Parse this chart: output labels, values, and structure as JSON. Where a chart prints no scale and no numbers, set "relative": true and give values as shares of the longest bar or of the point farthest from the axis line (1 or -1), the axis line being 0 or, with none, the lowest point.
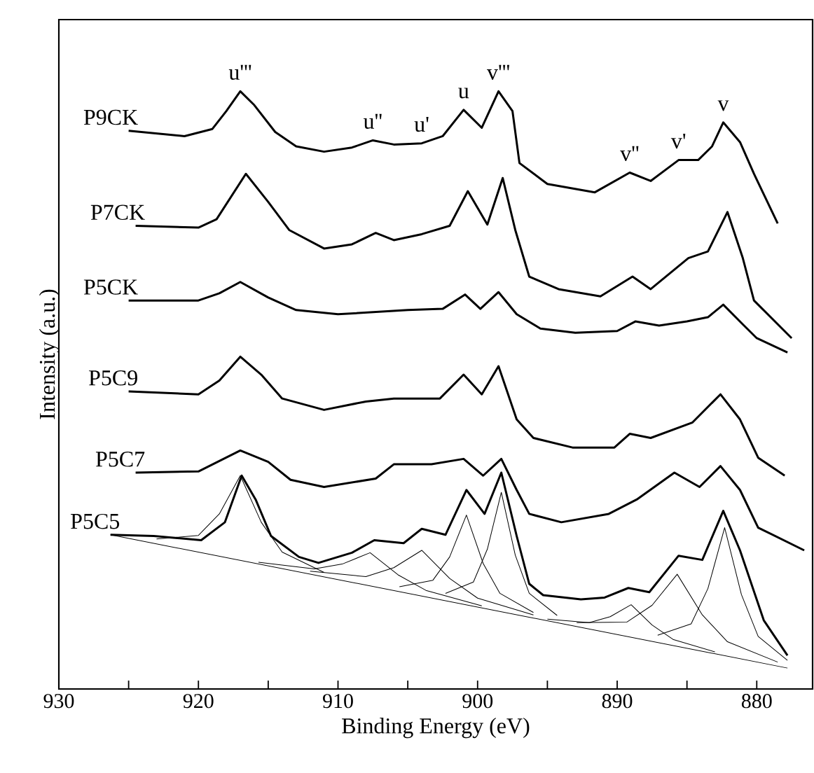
{
  "chart_data": {
    "type": "line",
    "relative": true,
    "xlabel": "Binding Energy (eV)",
    "ylabel": "Intensity (a.u.)",
    "xlim": [
      930,
      876
    ],
    "xticks": [
      930,
      {
        "value": 925,
        "label": null
      },
      920,
      {
        "value": 915,
        "label": null
      },
      910,
      {
        "value": 905,
        "label": null
      },
      900,
      {
        "value": 895,
        "label": null
      },
      890,
      {
        "value": 885,
        "label": null
      },
      880
    ],
    "annotations": [
      {
        "text": "u'''",
        "x": 917,
        "y": 1.0
      },
      {
        "text": "u''",
        "x": 907.5,
        "y": 0.918
      },
      {
        "text": "u'",
        "x": 904,
        "y": 0.913
      },
      {
        "text": "u",
        "x": 901,
        "y": 0.969
      },
      {
        "text": "v'''",
        "x": 898.5,
        "y": 1.0
      },
      {
        "text": "v''",
        "x": 889.1,
        "y": 0.864
      },
      {
        "text": "v'",
        "x": 885.6,
        "y": 0.885
      },
      {
        "text": "v",
        "x": 882.4,
        "y": 0.948
      }
    ],
    "series": [
      {
        "name": "P9CK",
        "color": "#000000",
        "x": [
          925,
          921,
          919,
          918,
          917,
          916,
          914.5,
          913,
          911,
          909,
          907.5,
          906,
          904,
          902.5,
          901,
          899.7,
          898.5,
          897.5,
          897,
          895,
          891.6,
          889.1,
          887.6,
          885.6,
          884.2,
          883.2,
          882.4,
          881.2,
          880.2,
          878.5
        ],
        "values": [
          0.934,
          0.925,
          0.937,
          0.967,
          1.0,
          0.977,
          0.932,
          0.908,
          0.899,
          0.906,
          0.918,
          0.911,
          0.913,
          0.925,
          0.969,
          0.939,
          1.0,
          0.967,
          0.88,
          0.845,
          0.831,
          0.864,
          0.85,
          0.885,
          0.885,
          0.908,
          0.948,
          0.915,
          0.862,
          0.779
        ]
      },
      {
        "name": "P7CK",
        "color": "#000000",
        "x": [
          924.5,
          920,
          918.7,
          916.6,
          915,
          913.5,
          911,
          909,
          907.3,
          906,
          904,
          902,
          900.7,
          899.3,
          898.2,
          897.3,
          896.3,
          894.2,
          891.2,
          888.9,
          887.6,
          884.9,
          883.5,
          882.1,
          881,
          880.2,
          877.5
        ],
        "values": [
          0.775,
          0.772,
          0.786,
          0.862,
          0.815,
          0.768,
          0.737,
          0.744,
          0.763,
          0.751,
          0.761,
          0.775,
          0.833,
          0.777,
          0.855,
          0.768,
          0.69,
          0.669,
          0.657,
          0.69,
          0.669,
          0.721,
          0.732,
          0.798,
          0.721,
          0.65,
          0.587
        ]
      },
      {
        "name": "P5CK",
        "color": "#000000",
        "x": [
          925,
          920,
          918.5,
          917,
          915,
          913,
          910,
          905,
          902.5,
          900.9,
          899.8,
          898.5,
          897.2,
          895.5,
          893,
          890,
          888.7,
          887,
          885,
          883.5,
          882.4,
          881,
          880,
          877.8
        ],
        "values": [
          0.65,
          0.65,
          0.662,
          0.681,
          0.655,
          0.634,
          0.627,
          0.634,
          0.636,
          0.66,
          0.636,
          0.664,
          0.627,
          0.603,
          0.596,
          0.599,
          0.615,
          0.608,
          0.615,
          0.622,
          0.643,
          0.61,
          0.587,
          0.563
        ]
      },
      {
        "name": "P5C9",
        "color": "#000000",
        "x": [
          925,
          920,
          918.5,
          917,
          915.5,
          914,
          911,
          908,
          906,
          902.7,
          901,
          899.7,
          898.5,
          897.2,
          896,
          893.2,
          890.2,
          889.1,
          887.6,
          884.6,
          882.6,
          881.2,
          879.9,
          878
        ],
        "values": [
          0.498,
          0.493,
          0.516,
          0.556,
          0.526,
          0.486,
          0.467,
          0.481,
          0.486,
          0.486,
          0.526,
          0.493,
          0.54,
          0.451,
          0.42,
          0.404,
          0.404,
          0.427,
          0.42,
          0.446,
          0.493,
          0.451,
          0.387,
          0.357
        ]
      },
      {
        "name": "P5C7",
        "color": "#000000",
        "x": [
          924.5,
          920,
          917,
          915,
          913.4,
          911,
          907.3,
          906,
          903.3,
          901,
          899.6,
          898.3,
          897.2,
          896.3,
          894,
          890.6,
          888.6,
          885.9,
          884.1,
          882.6,
          881.2,
          879.9,
          876.6
        ],
        "values": [
          0.362,
          0.364,
          0.399,
          0.38,
          0.35,
          0.338,
          0.352,
          0.376,
          0.376,
          0.385,
          0.357,
          0.385,
          0.333,
          0.293,
          0.279,
          0.293,
          0.317,
          0.362,
          0.338,
          0.373,
          0.333,
          0.27,
          0.232
        ]
      },
      {
        "name": "P5C5",
        "color": "#000000",
        "x": [
          926.3,
          923.2,
          919.8,
          918.1,
          916.9,
          915.9,
          914.8,
          912.8,
          911.4,
          909,
          907.4,
          905.3,
          904,
          902.3,
          900.8,
          899.5,
          898.3,
          897.2,
          896.3,
          895.3,
          892.6,
          890.9,
          889.2,
          887.7,
          885.6,
          883.9,
          882.4,
          881.2,
          879.5,
          877.8
        ],
        "values": [
          0.258,
          0.256,
          0.249,
          0.279,
          0.357,
          0.317,
          0.256,
          0.221,
          0.211,
          0.228,
          0.249,
          0.244,
          0.268,
          0.258,
          0.333,
          0.293,
          0.362,
          0.256,
          0.176,
          0.157,
          0.15,
          0.153,
          0.169,
          0.162,
          0.223,
          0.216,
          0.298,
          0.232,
          0.115,
          0.056
        ]
      },
      {
        "color": "#000000",
        "x": [
          926.3,
          877.8
        ],
        "values": [
          0.258,
          0.035
        ]
      },
      {
        "color": "#000000",
        "x": [
          923,
          920,
          918.5,
          917,
          915.5,
          914,
          911
        ],
        "values": [
          0.251,
          0.257,
          0.293,
          0.357,
          0.279,
          0.229,
          0.195
        ]
      },
      {
        "color": "#000000",
        "x": [
          915.7,
          911.7,
          909.7,
          907.7,
          905.7,
          903.7,
          899.7
        ],
        "values": [
          0.212,
          0.201,
          0.209,
          0.228,
          0.191,
          0.165,
          0.139
        ]
      },
      {
        "color": "#000000",
        "x": [
          912,
          908,
          906,
          904,
          902,
          900,
          896
        ],
        "values": [
          0.197,
          0.188,
          0.203,
          0.232,
          0.185,
          0.152,
          0.124
        ]
      },
      {
        "color": "#000000",
        "x": [
          905.6,
          903.2,
          902,
          900.8,
          899.6,
          898.4,
          896
        ],
        "values": [
          0.171,
          0.182,
          0.221,
          0.291,
          0.21,
          0.16,
          0.128
        ]
      },
      {
        "color": "#000000",
        "x": [
          902.3,
          900.3,
          899.3,
          898.3,
          897.3,
          896.3,
          894.3
        ],
        "values": [
          0.16,
          0.179,
          0.234,
          0.329,
          0.224,
          0.16,
          0.123
        ]
      },
      {
        "color": "#000000",
        "x": [
          895,
          892,
          890.5,
          889,
          887.5,
          886,
          883
        ],
        "values": [
          0.117,
          0.111,
          0.121,
          0.141,
          0.107,
          0.083,
          0.062
        ]
      },
      {
        "color": "#000000",
        "x": [
          892.9,
          889.3,
          887.5,
          885.7,
          883.9,
          882.1,
          878.5
        ],
        "values": [
          0.111,
          0.112,
          0.14,
          0.192,
          0.124,
          0.079,
          0.045
        ]
      },
      {
        "color": "#000000",
        "x": [
          887.1,
          884.7,
          883.5,
          882.3,
          881.1,
          879.9,
          877.8
        ],
        "values": [
          0.09,
          0.109,
          0.168,
          0.27,
          0.158,
          0.088,
          0.048
        ]
      }
    ]
  }
}
